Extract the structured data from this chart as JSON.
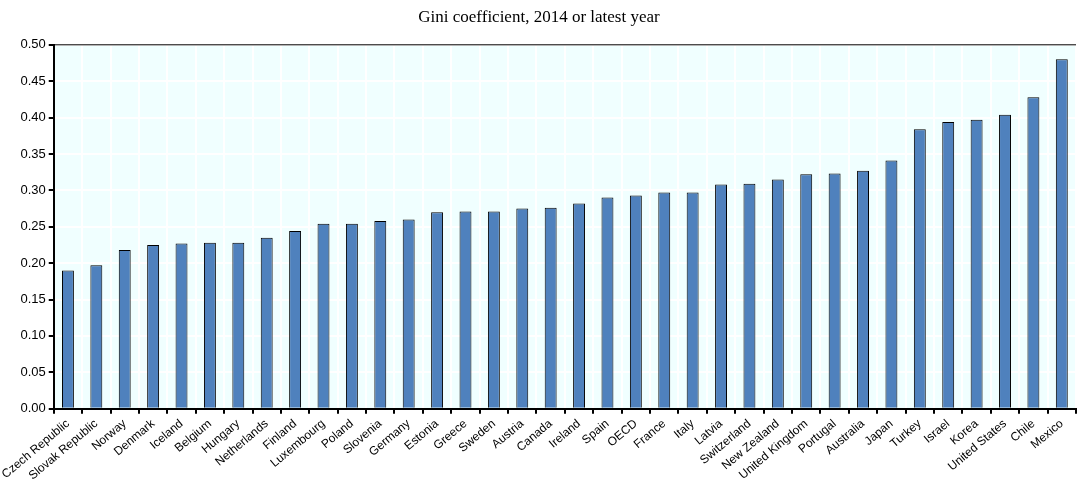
{
  "chart_data": {
    "type": "bar",
    "title": "Gini coefficient, 2014 or latest year",
    "categories": [
      "Czech Republic",
      "Slovak Republic",
      "Norway",
      "Denmark",
      "Iceland",
      "Belgium",
      "Hungary",
      "Netherlands",
      "Finland",
      "Luxembourg",
      "Poland",
      "Slovenia",
      "Germany",
      "Estonia",
      "Greece",
      "Sweden",
      "Austria",
      "Canada",
      "Ireland",
      "Spain",
      "OECD",
      "France",
      "Italy",
      "Latvia",
      "Switzerland",
      "New Zealand",
      "United Kingdom",
      "Portugal",
      "Australia",
      "Japan",
      "Turkey",
      "Israel",
      "Korea",
      "United States",
      "Chile",
      "Mexico"
    ],
    "values": [
      0.19,
      0.197,
      0.218,
      0.225,
      0.227,
      0.228,
      0.228,
      0.235,
      0.244,
      0.254,
      0.254,
      0.258,
      0.26,
      0.27,
      0.271,
      0.271,
      0.275,
      0.276,
      0.282,
      0.29,
      0.293,
      0.297,
      0.297,
      0.308,
      0.309,
      0.315,
      0.322,
      0.323,
      0.327,
      0.341,
      0.384,
      0.394,
      0.397,
      0.404,
      0.428,
      0.48
    ],
    "color": "#4f81bd",
    "ylim": [
      0,
      0.5
    ],
    "yticks": [
      {
        "value": 0,
        "label": "0.00"
      },
      {
        "value": 0.05,
        "label": "0.05"
      },
      {
        "value": 0.1,
        "label": "0.10"
      },
      {
        "value": 0.15,
        "label": "0.15"
      },
      {
        "value": 0.2,
        "label": "0.20"
      },
      {
        "value": 0.25,
        "label": "0.25"
      },
      {
        "value": 0.3,
        "label": "0.30"
      },
      {
        "value": 0.35,
        "label": "0.35"
      },
      {
        "value": 0.4,
        "label": "0.40"
      },
      {
        "value": 0.45,
        "label": "0.45"
      },
      {
        "value": 0.5,
        "label": "0.50"
      }
    ],
    "grid": true
  }
}
